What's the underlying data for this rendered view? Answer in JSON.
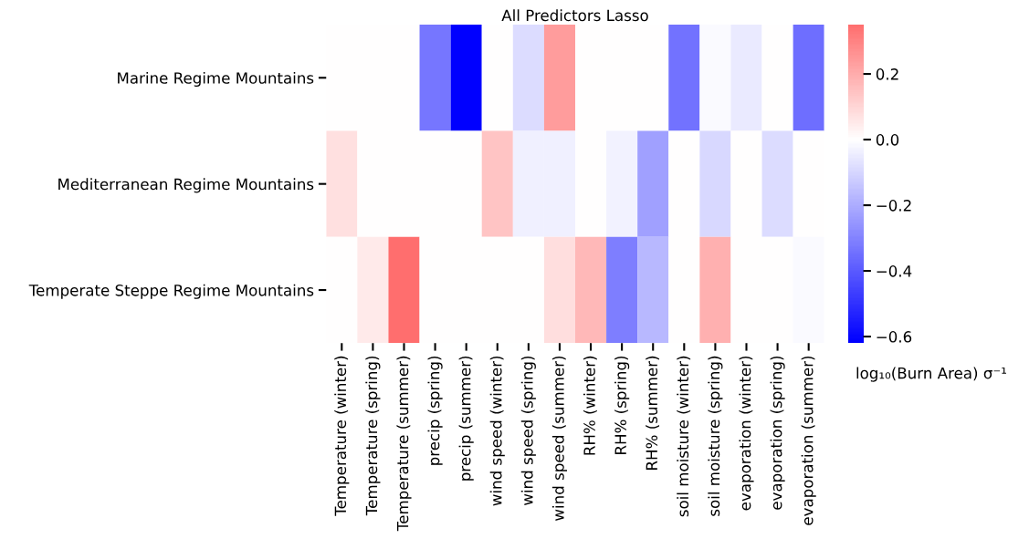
{
  "chart_data": {
    "type": "heatmap",
    "title": "All Predictors Lasso",
    "categories": [
      "Temperature (winter)",
      "Temperature (spring)",
      "Temperature (summer)",
      "precip (spring)",
      "precip (summer)",
      "wind speed (winter)",
      "wind speed (spring)",
      "wind speed (summer)",
      "RH% (winter)",
      "RH% (spring)",
      "RH% (summer)",
      "soil moisture (winter)",
      "soil moisture (spring)",
      "evaporation (winter)",
      "evaporation (spring)",
      "evaporation (summer)"
    ],
    "y_categories": [
      "Marine Regime Mountains",
      "Mediterranean Regime Mountains",
      "Temperate Steppe Regime Mountains"
    ],
    "cells": [
      [
        0,
        0,
        0,
        -0.33,
        -0.62,
        0,
        -0.085,
        0.24,
        0,
        0,
        0,
        -0.34,
        -0.01,
        -0.05,
        0,
        -0.35
      ],
      [
        0.075,
        0,
        0,
        0,
        0,
        0.14,
        -0.035,
        -0.035,
        0,
        -0.03,
        -0.23,
        0,
        -0.095,
        0,
        -0.085,
        0
      ],
      [
        0,
        0.05,
        0.35,
        0,
        0,
        0,
        0,
        0.08,
        0.17,
        -0.31,
        -0.17,
        0,
        0.19,
        0,
        0,
        -0.01
      ]
    ],
    "clim": [
      -0.62,
      0.35
    ],
    "cticks": [
      {
        "value": -0.6,
        "label": "−0.6"
      },
      {
        "value": -0.4,
        "label": "−0.4"
      },
      {
        "value": -0.2,
        "label": "−0.2"
      },
      {
        "value": 0.0,
        "label": "0.0"
      },
      {
        "value": 0.2,
        "label": "0.2"
      }
    ],
    "clabel": "log₁₀(Burn Area) σ⁻¹"
  }
}
